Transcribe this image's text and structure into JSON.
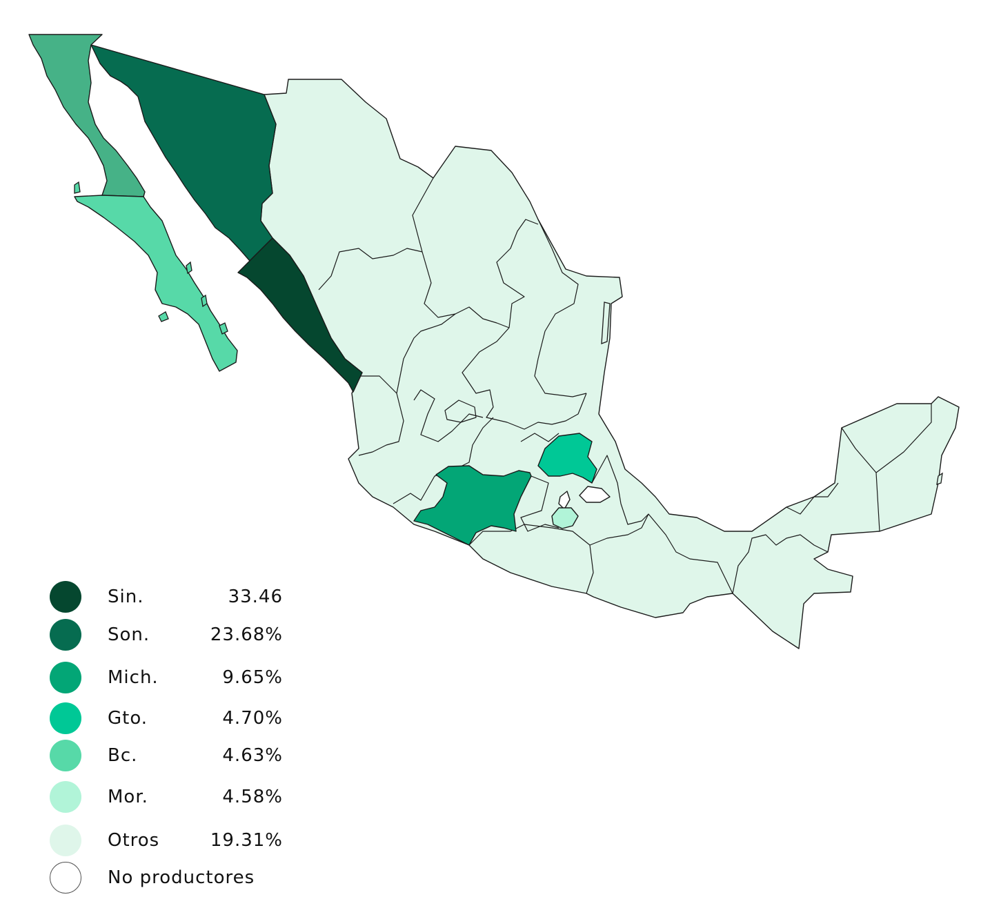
{
  "colors": {
    "sinaloa": "#05472f",
    "sonora": "#066c50",
    "michoacan": "#03a676",
    "guanajuato": "#00c896",
    "bc_north": "#46b287",
    "bcs": "#57d9a8",
    "morelos": "#b1f4d8",
    "otros": "#dff6ea",
    "no_productores": "#ffffff",
    "stroke": "#1a1a1a"
  },
  "legend": [
    {
      "label": "Sin.",
      "value": "33.46",
      "color": "#05472f"
    },
    {
      "label": "Son.",
      "value": "23.68%",
      "color": "#066c50"
    },
    {
      "label": "Mich.",
      "value": "9.65%",
      "color": "#03a676"
    },
    {
      "label": "Gto.",
      "value": "4.70%",
      "color": "#00c896"
    },
    {
      "label": "Bc.",
      "value": "4.63%",
      "color": "#57d9a8"
    },
    {
      "label": "Mor.",
      "value": "4.58%",
      "color": "#b1f4d8"
    },
    {
      "label": "Otros",
      "value": "19.31%",
      "color": "#dff6ea"
    },
    {
      "label": "No productores",
      "value": "",
      "color": "#ffffff"
    }
  ]
}
